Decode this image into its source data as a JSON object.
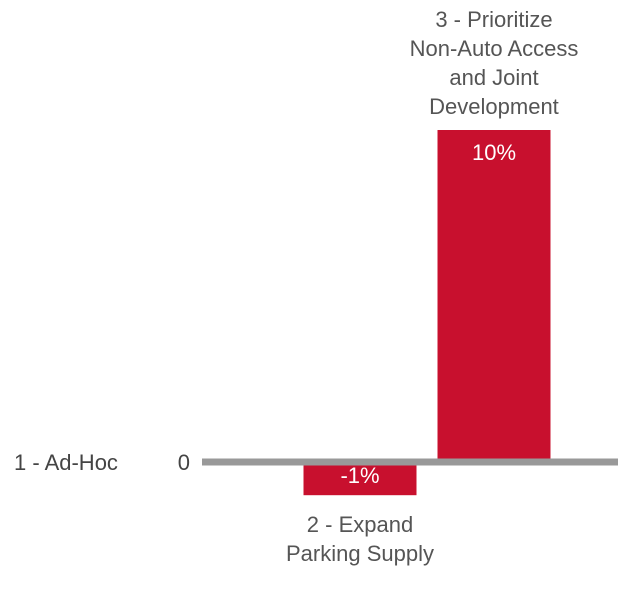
{
  "chart_data": {
    "type": "bar",
    "title": "",
    "xlabel": "",
    "ylabel": "",
    "baseline_label": "1 - Ad-Hoc",
    "zero_tick": "0",
    "categories": [
      "2 - Expand Parking Supply",
      "3 - Prioritize Non-Auto Access and Joint Development"
    ],
    "category_lines": [
      [
        "2 - Expand",
        "Parking Supply"
      ],
      [
        "3 - Prioritize",
        "Non-Auto Access",
        "and Joint",
        "Development"
      ]
    ],
    "values": [
      -1,
      10
    ],
    "value_labels": [
      "-1%",
      "10%"
    ],
    "ylim": [
      -2.5,
      10
    ],
    "colors": {
      "bar": "#c8102e",
      "axis": "#999999",
      "label_text": "#555555",
      "bar_label_text": "#ffffff"
    },
    "grid": false,
    "legend": "none"
  }
}
